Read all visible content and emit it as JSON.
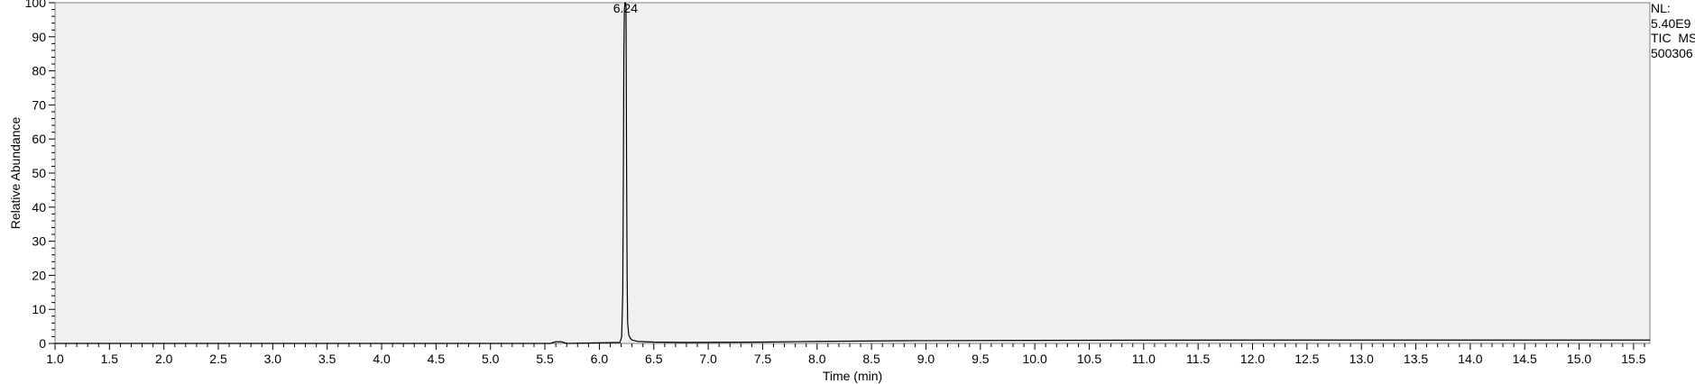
{
  "chart_data": {
    "type": "line",
    "title": "",
    "xlabel": "Time (min)",
    "ylabel": "Relative Abundance",
    "xlim": [
      1.0,
      15.65
    ],
    "ylim": [
      0,
      100
    ],
    "x_ticks": [
      "1.0",
      "1.5",
      "2.0",
      "2.5",
      "3.0",
      "3.5",
      "4.0",
      "4.5",
      "5.0",
      "5.5",
      "6.0",
      "6.5",
      "7.0",
      "7.5",
      "8.0",
      "8.5",
      "9.0",
      "9.5",
      "10.0",
      "10.5",
      "11.0",
      "11.5",
      "12.0",
      "12.5",
      "13.0",
      "13.5",
      "14.0",
      "14.5",
      "15.0",
      "15.5"
    ],
    "y_ticks": [
      "0",
      "10",
      "20",
      "30",
      "40",
      "50",
      "60",
      "70",
      "80",
      "90",
      "100"
    ],
    "grid": false,
    "plot_background": "#f0f0f0",
    "line_color": "#000000",
    "series": [
      {
        "x": [
          1.0,
          5.55,
          5.6,
          5.65,
          5.7,
          6.19,
          6.205,
          6.215,
          6.22,
          6.225,
          6.23,
          6.235,
          6.24,
          6.245,
          6.25,
          6.255,
          6.26,
          6.27,
          6.285,
          6.3,
          6.35,
          6.5,
          6.8,
          7.5,
          8.0,
          8.8,
          10.0,
          12.0,
          14.0,
          15.65
        ],
        "y": [
          0.0,
          0.0,
          0.5,
          0.5,
          0.0,
          0.3,
          2.0,
          15.0,
          45.0,
          85.0,
          98.0,
          100.0,
          100.0,
          99.0,
          53.0,
          20.0,
          6.0,
          2.5,
          1.5,
          1.0,
          0.6,
          0.4,
          0.3,
          0.4,
          0.6,
          0.8,
          0.9,
          1.0,
          1.0,
          1.0
        ]
      }
    ],
    "annotations": [
      {
        "text": "6.24",
        "x": 6.24,
        "y": 100
      }
    ]
  },
  "info_box": {
    "nl_label": "NL:",
    "nl_value": "5.40E9",
    "scan_type": "TIC  MS",
    "file_name": "500306"
  }
}
